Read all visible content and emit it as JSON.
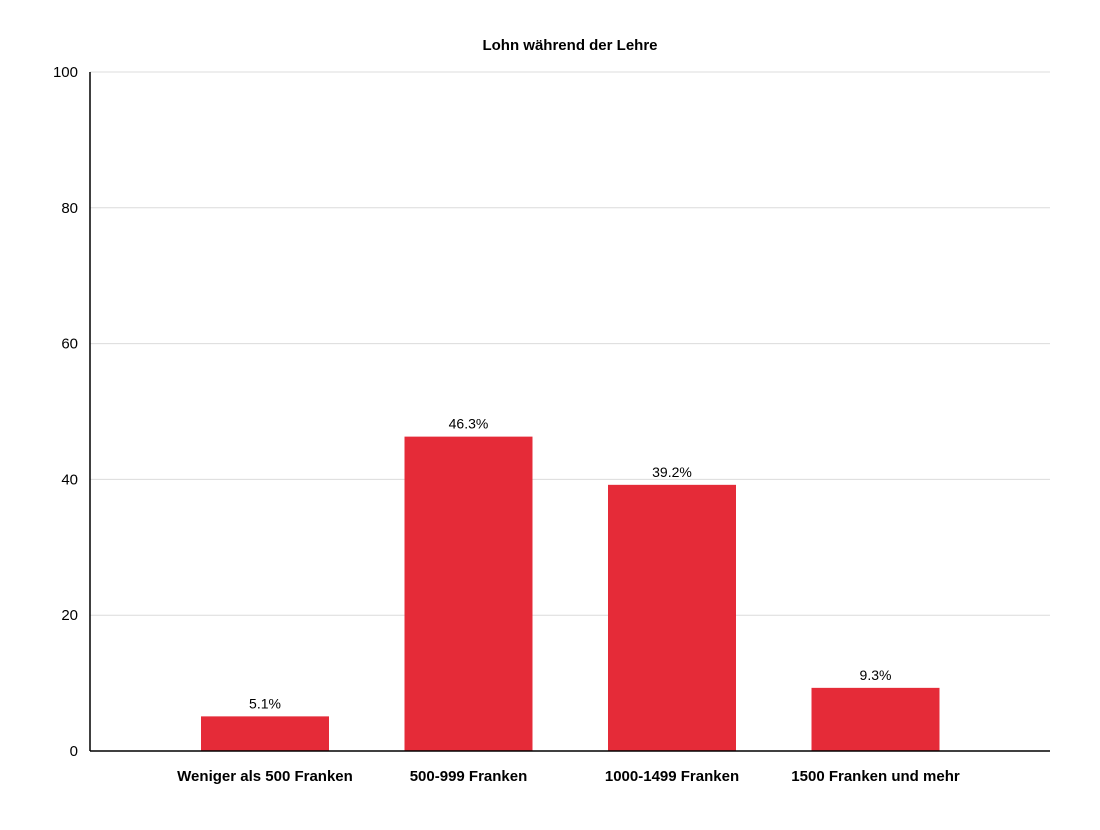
{
  "chart_data": {
    "type": "bar",
    "title": "Lohn während der Lehre",
    "xlabel": "",
    "ylabel": "",
    "categories": [
      "Weniger als 500 Franken",
      "500-999 Franken",
      "1000-1499 Franken",
      "1500 Franken und mehr"
    ],
    "values": [
      5.1,
      46.3,
      39.2,
      9.3
    ],
    "data_labels": [
      "5.1%",
      "46.3%",
      "39.2%",
      "9.3%"
    ],
    "ylim": [
      0,
      100
    ],
    "yticks": [
      0,
      20,
      40,
      60,
      80,
      100
    ],
    "grid": true,
    "legend": "none",
    "bar_color": "#e52b38"
  }
}
